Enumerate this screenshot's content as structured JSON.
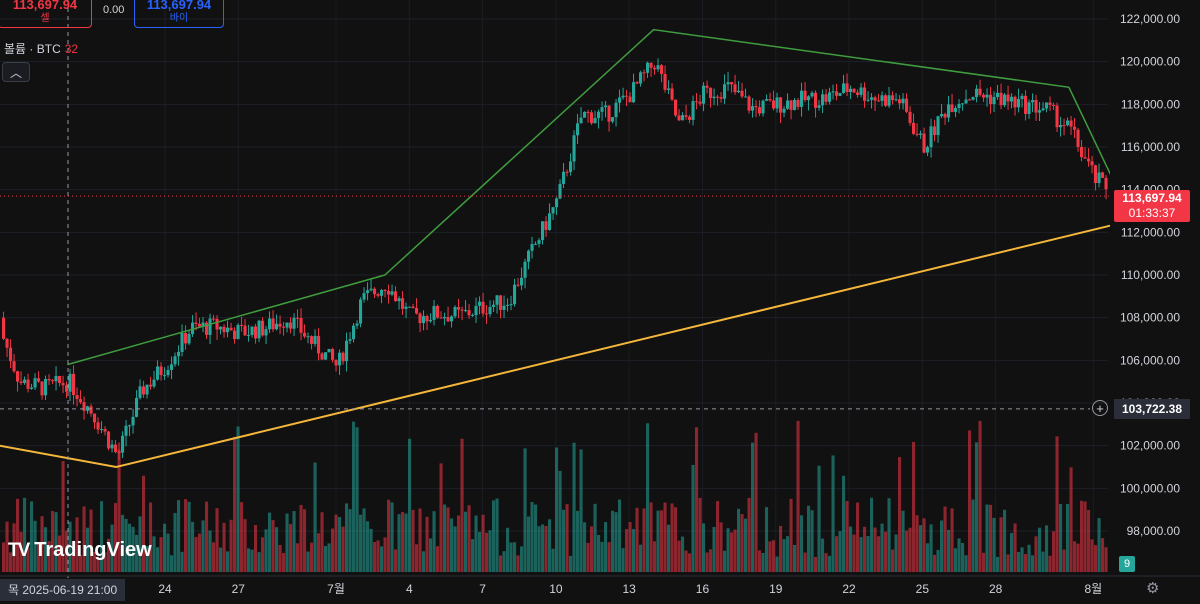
{
  "header": {
    "sell_price": "113,697.94",
    "sell_label": "셀",
    "spread": "0.00",
    "buy_price": "113,697.94",
    "buy_label": "바이"
  },
  "volume_legend": {
    "label": "볼륨 · BTC",
    "value": "32"
  },
  "collapse_icon": "chevron-up-icon",
  "logo_text": "TradingView",
  "logo_mark": "TV",
  "crosshair_date": "목 2025-06-19  21:00",
  "last_price": {
    "price": "113,697.94",
    "countdown": "01:33:37"
  },
  "crosshair_price": "103,722.38",
  "volume_badge": "9",
  "colors": {
    "up": "#26a69a",
    "down": "#f23645",
    "upper_trend": "#3f9d3f",
    "lower_trend": "#f5b73b",
    "bg": "#111111"
  },
  "chart_data": {
    "type": "candlestick",
    "y_ticks": [
      "122,000.00",
      "120,000.00",
      "118,000.00",
      "116,000.00",
      "114,000.00",
      "112,000.00",
      "110,000.00",
      "108,000.00",
      "106,000.00",
      "104,000.00",
      "102,000.00",
      "100,000.00",
      "98,000.00"
    ],
    "y_tick_values": [
      122000,
      120000,
      118000,
      116000,
      114000,
      112000,
      110000,
      108000,
      106000,
      104000,
      102000,
      100000,
      98000
    ],
    "x_ticks": [
      "24",
      "27",
      "7월",
      "4",
      "7",
      "10",
      "13",
      "16",
      "19",
      "22",
      "25",
      "28",
      "8월"
    ],
    "ylim": [
      97000,
      123000
    ],
    "price_series": [
      {
        "date": "06-17",
        "close": 108000
      },
      {
        "date": "06-18",
        "close": 105000
      },
      {
        "date": "06-19",
        "close": 104700
      },
      {
        "date": "06-20",
        "close": 105000
      },
      {
        "date": "06-21",
        "close": 103500
      },
      {
        "date": "06-22",
        "close": 101500
      },
      {
        "date": "06-23",
        "close": 104600
      },
      {
        "date": "06-24",
        "close": 105800
      },
      {
        "date": "06-25",
        "close": 107500
      },
      {
        "date": "06-26",
        "close": 107600
      },
      {
        "date": "06-27",
        "close": 107300
      },
      {
        "date": "06-28",
        "close": 107500
      },
      {
        "date": "06-29",
        "close": 108000
      },
      {
        "date": "06-30",
        "close": 106800
      },
      {
        "date": "07-01",
        "close": 105700
      },
      {
        "date": "07-02",
        "close": 108800
      },
      {
        "date": "07-03",
        "close": 109600
      },
      {
        "date": "07-04",
        "close": 108000
      },
      {
        "date": "07-05",
        "close": 108200
      },
      {
        "date": "07-06",
        "close": 108100
      },
      {
        "date": "07-07",
        "close": 108500
      },
      {
        "date": "07-08",
        "close": 108800
      },
      {
        "date": "07-09",
        "close": 111200
      },
      {
        "date": "07-10",
        "close": 113500
      },
      {
        "date": "07-11",
        "close": 117500
      },
      {
        "date": "07-12",
        "close": 117500
      },
      {
        "date": "07-13",
        "close": 118500
      },
      {
        "date": "07-14",
        "close": 120000
      },
      {
        "date": "07-15",
        "close": 117000
      },
      {
        "date": "07-16",
        "close": 118500
      },
      {
        "date": "07-17",
        "close": 118800
      },
      {
        "date": "07-18",
        "close": 117800
      },
      {
        "date": "07-19",
        "close": 118000
      },
      {
        "date": "07-20",
        "close": 118200
      },
      {
        "date": "07-21",
        "close": 118300
      },
      {
        "date": "07-22",
        "close": 118800
      },
      {
        "date": "07-23",
        "close": 118300
      },
      {
        "date": "07-24",
        "close": 118200
      },
      {
        "date": "07-25",
        "close": 116000
      },
      {
        "date": "07-26",
        "close": 118000
      },
      {
        "date": "07-27",
        "close": 118500
      },
      {
        "date": "07-28",
        "close": 118300
      },
      {
        "date": "07-29",
        "close": 118000
      },
      {
        "date": "07-30",
        "close": 117800
      },
      {
        "date": "07-31",
        "close": 116800
      },
      {
        "date": "08-01",
        "close": 114500
      },
      {
        "date": "08-02",
        "close": 113700
      }
    ],
    "trendlines": [
      {
        "name": "upper",
        "points": [
          [
            "06-20",
            105800
          ],
          [
            "07-03",
            110000
          ],
          [
            "07-14",
            121500
          ],
          [
            "07-31",
            118800
          ],
          [
            "08-02",
            114000
          ]
        ]
      },
      {
        "name": "lower",
        "points": [
          [
            "06-11",
            103300
          ],
          [
            "06-22",
            101000
          ],
          [
            "08-02",
            112400
          ]
        ]
      }
    ],
    "horizontal_lines": [
      113697.94,
      103722.38
    ]
  }
}
